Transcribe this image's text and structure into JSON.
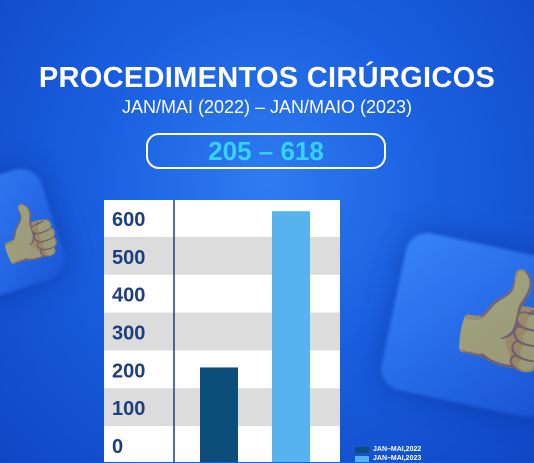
{
  "header": {
    "title": "PROCEDIMENTOS CIRÚRGICOS",
    "subtitle": "JAN/MAI (2022) – JAN/MAIO (2023)",
    "range_badge": "205 – 618"
  },
  "decor": {
    "icon": "thumbs-up-icon"
  },
  "colors": {
    "background": "#1a5fe0",
    "series_2022": "#0d4d7a",
    "series_2023": "#57b3ee",
    "axis_text": "#1d3f7d",
    "band": "#dcdcdc"
  },
  "chart_data": {
    "type": "bar",
    "categories": [
      "JAN–MAI,2022",
      "JAN–MAI,2023"
    ],
    "series": [
      {
        "name": "JAN–MAI,2022",
        "values": [
          205,
          null
        ]
      },
      {
        "name": "JAN–MAI,2023",
        "values": [
          null,
          618
        ]
      }
    ],
    "yticks": [
      "600",
      "500",
      "400",
      "300",
      "200",
      "100",
      "0"
    ],
    "ylim": [
      0,
      600
    ],
    "grid": "alternating-bands",
    "legend": "bottom-right"
  }
}
